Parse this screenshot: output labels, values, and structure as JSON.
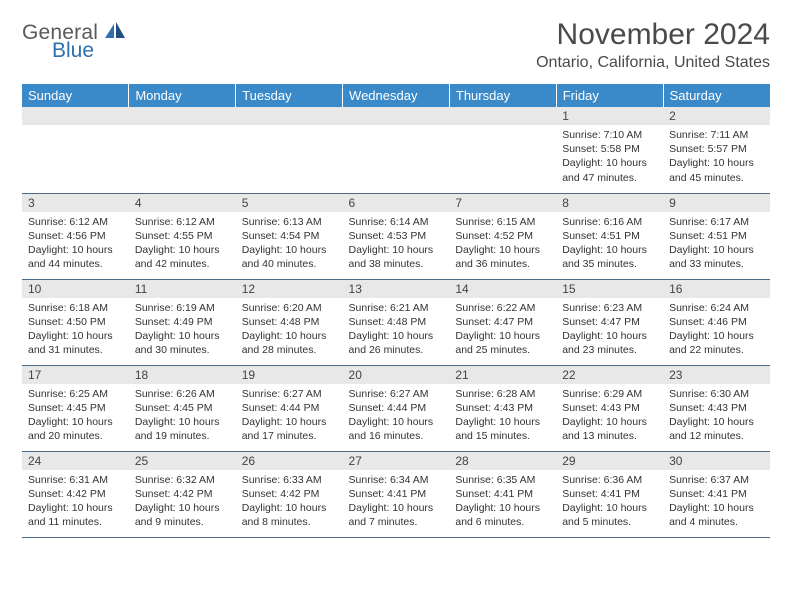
{
  "brand": {
    "word1": "General",
    "word2": "Blue"
  },
  "title": "November 2024",
  "location": "Ontario, California, United States",
  "colors": {
    "header_bg": "#3a89c9",
    "header_fg": "#ffffff",
    "daynum_bg": "#e8e8e8",
    "row_border": "#4a6a8a",
    "text": "#333333",
    "brand_gray": "#5a5a5a",
    "brand_blue": "#2f6fb0"
  },
  "weekdays": [
    "Sunday",
    "Monday",
    "Tuesday",
    "Wednesday",
    "Thursday",
    "Friday",
    "Saturday"
  ],
  "weeks": [
    [
      {
        "n": "",
        "sr": "",
        "ss": "",
        "dl": ""
      },
      {
        "n": "",
        "sr": "",
        "ss": "",
        "dl": ""
      },
      {
        "n": "",
        "sr": "",
        "ss": "",
        "dl": ""
      },
      {
        "n": "",
        "sr": "",
        "ss": "",
        "dl": ""
      },
      {
        "n": "",
        "sr": "",
        "ss": "",
        "dl": ""
      },
      {
        "n": "1",
        "sr": "Sunrise: 7:10 AM",
        "ss": "Sunset: 5:58 PM",
        "dl": "Daylight: 10 hours and 47 minutes."
      },
      {
        "n": "2",
        "sr": "Sunrise: 7:11 AM",
        "ss": "Sunset: 5:57 PM",
        "dl": "Daylight: 10 hours and 45 minutes."
      }
    ],
    [
      {
        "n": "3",
        "sr": "Sunrise: 6:12 AM",
        "ss": "Sunset: 4:56 PM",
        "dl": "Daylight: 10 hours and 44 minutes."
      },
      {
        "n": "4",
        "sr": "Sunrise: 6:12 AM",
        "ss": "Sunset: 4:55 PM",
        "dl": "Daylight: 10 hours and 42 minutes."
      },
      {
        "n": "5",
        "sr": "Sunrise: 6:13 AM",
        "ss": "Sunset: 4:54 PM",
        "dl": "Daylight: 10 hours and 40 minutes."
      },
      {
        "n": "6",
        "sr": "Sunrise: 6:14 AM",
        "ss": "Sunset: 4:53 PM",
        "dl": "Daylight: 10 hours and 38 minutes."
      },
      {
        "n": "7",
        "sr": "Sunrise: 6:15 AM",
        "ss": "Sunset: 4:52 PM",
        "dl": "Daylight: 10 hours and 36 minutes."
      },
      {
        "n": "8",
        "sr": "Sunrise: 6:16 AM",
        "ss": "Sunset: 4:51 PM",
        "dl": "Daylight: 10 hours and 35 minutes."
      },
      {
        "n": "9",
        "sr": "Sunrise: 6:17 AM",
        "ss": "Sunset: 4:51 PM",
        "dl": "Daylight: 10 hours and 33 minutes."
      }
    ],
    [
      {
        "n": "10",
        "sr": "Sunrise: 6:18 AM",
        "ss": "Sunset: 4:50 PM",
        "dl": "Daylight: 10 hours and 31 minutes."
      },
      {
        "n": "11",
        "sr": "Sunrise: 6:19 AM",
        "ss": "Sunset: 4:49 PM",
        "dl": "Daylight: 10 hours and 30 minutes."
      },
      {
        "n": "12",
        "sr": "Sunrise: 6:20 AM",
        "ss": "Sunset: 4:48 PM",
        "dl": "Daylight: 10 hours and 28 minutes."
      },
      {
        "n": "13",
        "sr": "Sunrise: 6:21 AM",
        "ss": "Sunset: 4:48 PM",
        "dl": "Daylight: 10 hours and 26 minutes."
      },
      {
        "n": "14",
        "sr": "Sunrise: 6:22 AM",
        "ss": "Sunset: 4:47 PM",
        "dl": "Daylight: 10 hours and 25 minutes."
      },
      {
        "n": "15",
        "sr": "Sunrise: 6:23 AM",
        "ss": "Sunset: 4:47 PM",
        "dl": "Daylight: 10 hours and 23 minutes."
      },
      {
        "n": "16",
        "sr": "Sunrise: 6:24 AM",
        "ss": "Sunset: 4:46 PM",
        "dl": "Daylight: 10 hours and 22 minutes."
      }
    ],
    [
      {
        "n": "17",
        "sr": "Sunrise: 6:25 AM",
        "ss": "Sunset: 4:45 PM",
        "dl": "Daylight: 10 hours and 20 minutes."
      },
      {
        "n": "18",
        "sr": "Sunrise: 6:26 AM",
        "ss": "Sunset: 4:45 PM",
        "dl": "Daylight: 10 hours and 19 minutes."
      },
      {
        "n": "19",
        "sr": "Sunrise: 6:27 AM",
        "ss": "Sunset: 4:44 PM",
        "dl": "Daylight: 10 hours and 17 minutes."
      },
      {
        "n": "20",
        "sr": "Sunrise: 6:27 AM",
        "ss": "Sunset: 4:44 PM",
        "dl": "Daylight: 10 hours and 16 minutes."
      },
      {
        "n": "21",
        "sr": "Sunrise: 6:28 AM",
        "ss": "Sunset: 4:43 PM",
        "dl": "Daylight: 10 hours and 15 minutes."
      },
      {
        "n": "22",
        "sr": "Sunrise: 6:29 AM",
        "ss": "Sunset: 4:43 PM",
        "dl": "Daylight: 10 hours and 13 minutes."
      },
      {
        "n": "23",
        "sr": "Sunrise: 6:30 AM",
        "ss": "Sunset: 4:43 PM",
        "dl": "Daylight: 10 hours and 12 minutes."
      }
    ],
    [
      {
        "n": "24",
        "sr": "Sunrise: 6:31 AM",
        "ss": "Sunset: 4:42 PM",
        "dl": "Daylight: 10 hours and 11 minutes."
      },
      {
        "n": "25",
        "sr": "Sunrise: 6:32 AM",
        "ss": "Sunset: 4:42 PM",
        "dl": "Daylight: 10 hours and 9 minutes."
      },
      {
        "n": "26",
        "sr": "Sunrise: 6:33 AM",
        "ss": "Sunset: 4:42 PM",
        "dl": "Daylight: 10 hours and 8 minutes."
      },
      {
        "n": "27",
        "sr": "Sunrise: 6:34 AM",
        "ss": "Sunset: 4:41 PM",
        "dl": "Daylight: 10 hours and 7 minutes."
      },
      {
        "n": "28",
        "sr": "Sunrise: 6:35 AM",
        "ss": "Sunset: 4:41 PM",
        "dl": "Daylight: 10 hours and 6 minutes."
      },
      {
        "n": "29",
        "sr": "Sunrise: 6:36 AM",
        "ss": "Sunset: 4:41 PM",
        "dl": "Daylight: 10 hours and 5 minutes."
      },
      {
        "n": "30",
        "sr": "Sunrise: 6:37 AM",
        "ss": "Sunset: 4:41 PM",
        "dl": "Daylight: 10 hours and 4 minutes."
      }
    ]
  ]
}
